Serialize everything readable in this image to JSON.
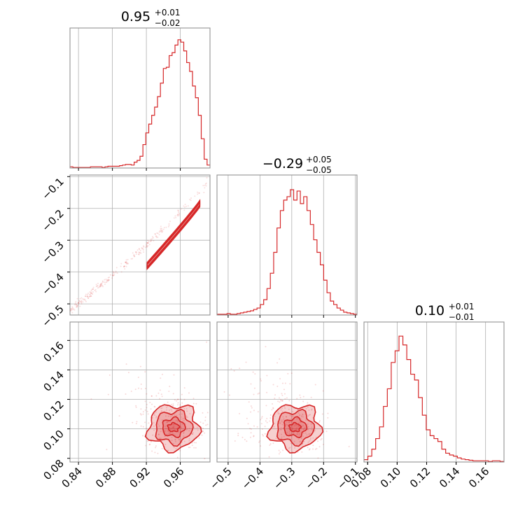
{
  "chart_data": {
    "type": "corner",
    "color": "#d62728",
    "grid": true,
    "params": [
      {
        "title": "0.95",
        "err_plus": "+0.01",
        "err_minus": "−0.02",
        "range": [
          0.83,
          0.995
        ]
      },
      {
        "title": "−0.29",
        "err_plus": "+0.05",
        "err_minus": "−0.05",
        "range": [
          -0.535,
          -0.095
        ]
      },
      {
        "title": "0.10",
        "err_plus": "+0.01",
        "err_minus": "−0.01",
        "range": [
          0.0775,
          0.1725
        ]
      }
    ],
    "ticks": [
      {
        "values": [
          0.84,
          0.88,
          0.92,
          0.96
        ],
        "labels": [
          "0.84",
          "0.88",
          "0.92",
          "0.96"
        ]
      },
      {
        "values": [
          -0.5,
          -0.4,
          -0.3,
          -0.2,
          -0.1
        ],
        "labels": [
          "−0.5",
          "−0.4",
          "−0.3",
          "−0.2",
          "−0.1"
        ]
      },
      {
        "values": [
          0.08,
          0.1,
          0.12,
          0.14,
          0.16
        ],
        "labels": [
          "0.08",
          "0.10",
          "0.12",
          "0.14",
          "0.16"
        ]
      }
    ],
    "hist": [
      {
        "bins": [
          0.83,
          0.995
        ],
        "counts": [
          2,
          1,
          1,
          1,
          1,
          1,
          1,
          2,
          2,
          2,
          2,
          1,
          2,
          3,
          3,
          3,
          3,
          4,
          5,
          6,
          6,
          5,
          10,
          13,
          20,
          40,
          60,
          75,
          90,
          104,
          122,
          145,
          170,
          172,
          192,
          197,
          210,
          219,
          215,
          200,
          180,
          165,
          140,
          120,
          90,
          50,
          15,
          5
        ],
        "ymax": 220
      },
      {
        "bins": [
          -0.535,
          -0.095
        ],
        "counts": [
          1,
          1,
          1,
          2,
          1,
          1,
          2,
          3,
          4,
          5,
          6,
          8,
          10,
          15,
          22,
          38,
          60,
          90,
          125,
          150,
          165,
          170,
          180,
          165,
          178,
          160,
          170,
          150,
          130,
          108,
          90,
          72,
          50,
          32,
          20,
          15,
          10,
          7,
          4,
          3,
          2,
          1
        ],
        "ymax": 185
      },
      {
        "bins": [
          0.0775,
          0.1725
        ],
        "counts": [
          4,
          10,
          22,
          40,
          60,
          95,
          125,
          170,
          190,
          215,
          200,
          175,
          150,
          140,
          110,
          80,
          55,
          45,
          40,
          35,
          22,
          15,
          12,
          10,
          7,
          5,
          4,
          3,
          2,
          2,
          2,
          2,
          1,
          2,
          2,
          1
        ],
        "ymax": 220
      }
    ],
    "pairs": [
      {
        "x": 0,
        "y": 1,
        "center": [
          0.952,
          -0.295
        ],
        "rho": 0.998
      },
      {
        "x": 0,
        "y": 2,
        "center": [
          0.952,
          0.101
        ],
        "rho": -0.3
      },
      {
        "x": 1,
        "y": 2,
        "center": [
          -0.29,
          0.101
        ],
        "rho": -0.3
      }
    ]
  }
}
